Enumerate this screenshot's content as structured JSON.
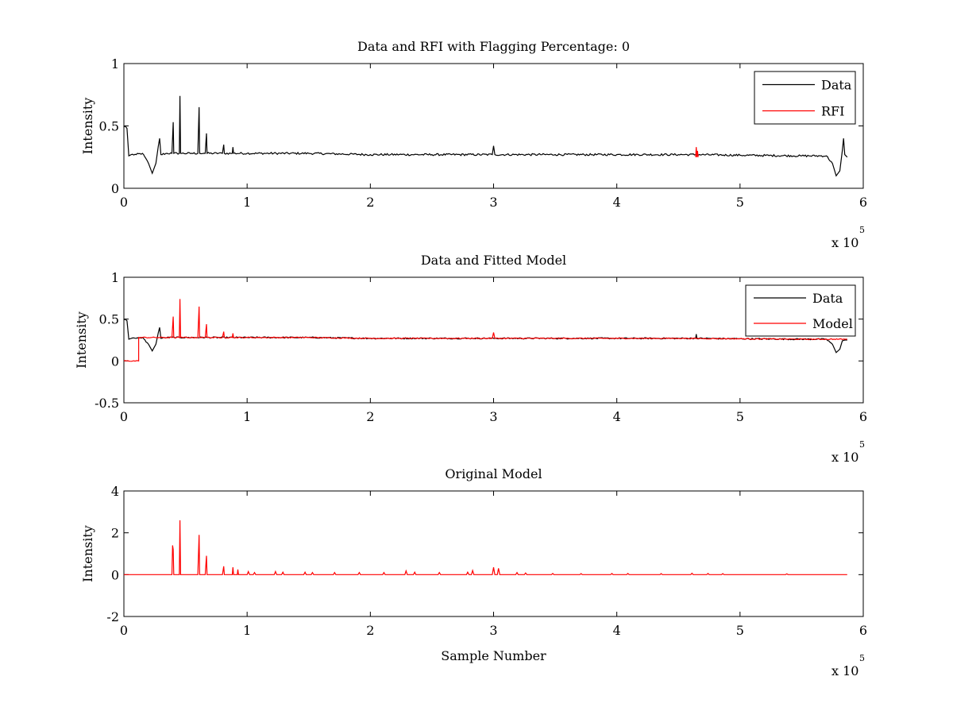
{
  "chart_data": [
    {
      "type": "line",
      "title": "Data and RFI with Flagging Percentage: 0",
      "xlabel": "",
      "ylabel": "Intensity",
      "xlim": [
        0,
        6
      ],
      "ylim": [
        0,
        1
      ],
      "xticks": [
        "0",
        "1",
        "2",
        "3",
        "4",
        "5",
        "6"
      ],
      "yticks": [
        "0",
        "0.5",
        "1"
      ],
      "x_multiplier": "x 10",
      "x_exponent": "5",
      "legend": {
        "position": "top-right",
        "entries": [
          {
            "label": "Data",
            "color": "#000000"
          },
          {
            "label": "RFI",
            "color": "#ff0000"
          }
        ]
      },
      "series": [
        {
          "name": "Data",
          "color": "#000000",
          "points": [
            [
              0.0,
              0.49
            ],
            [
              0.01,
              0.5
            ],
            [
              0.025,
              0.48
            ],
            [
              0.04,
              0.26
            ],
            [
              0.06,
              0.27
            ],
            [
              0.1,
              0.27
            ],
            [
              0.15,
              0.28
            ],
            [
              0.2,
              0.2
            ],
            [
              0.23,
              0.12
            ],
            [
              0.26,
              0.2
            ],
            [
              0.28,
              0.34
            ],
            [
              0.29,
              0.4
            ],
            [
              0.3,
              0.27
            ],
            [
              0.35,
              0.28
            ],
            [
              0.39,
              0.28
            ],
            [
              0.4,
              0.53
            ],
            [
              0.405,
              0.28
            ],
            [
              0.45,
              0.28
            ],
            [
              0.455,
              0.74
            ],
            [
              0.46,
              0.28
            ],
            [
              0.55,
              0.28
            ],
            [
              0.6,
              0.28
            ],
            [
              0.61,
              0.65
            ],
            [
              0.615,
              0.28
            ],
            [
              0.66,
              0.28
            ],
            [
              0.67,
              0.44
            ],
            [
              0.675,
              0.28
            ],
            [
              0.8,
              0.28
            ],
            [
              0.81,
              0.35
            ],
            [
              0.815,
              0.28
            ],
            [
              0.88,
              0.28
            ],
            [
              0.885,
              0.33
            ],
            [
              0.89,
              0.28
            ],
            [
              1.0,
              0.28
            ],
            [
              1.5,
              0.28
            ],
            [
              2.0,
              0.27
            ],
            [
              2.5,
              0.27
            ],
            [
              2.99,
              0.27
            ],
            [
              3.0,
              0.34
            ],
            [
              3.01,
              0.27
            ],
            [
              3.5,
              0.27
            ],
            [
              4.0,
              0.27
            ],
            [
              4.5,
              0.27
            ],
            [
              4.65,
              0.27
            ],
            [
              5.0,
              0.265
            ],
            [
              5.5,
              0.26
            ],
            [
              5.7,
              0.26
            ],
            [
              5.75,
              0.2
            ],
            [
              5.78,
              0.1
            ],
            [
              5.81,
              0.14
            ],
            [
              5.83,
              0.3
            ],
            [
              5.84,
              0.4
            ],
            [
              5.85,
              0.27
            ],
            [
              5.87,
              0.25
            ]
          ],
          "noise": 0.008
        },
        {
          "name": "RFI",
          "color": "#ff0000",
          "points": [
            [
              4.64,
              0.25
            ],
            [
              4.645,
              0.33
            ],
            [
              4.65,
              0.25
            ],
            [
              4.655,
              0.3
            ],
            [
              4.66,
              0.25
            ]
          ],
          "noise": 0
        }
      ]
    },
    {
      "type": "line",
      "title": "Data and Fitted Model",
      "xlabel": "",
      "ylabel": "Intensity",
      "xlim": [
        0,
        6
      ],
      "ylim": [
        -0.5,
        1
      ],
      "xticks": [
        "0",
        "1",
        "2",
        "3",
        "4",
        "5",
        "6"
      ],
      "yticks": [
        "-0.5",
        "0",
        "0.5",
        "1"
      ],
      "x_multiplier": "x 10",
      "x_exponent": "5",
      "legend": {
        "position": "top-right",
        "entries": [
          {
            "label": "Data",
            "color": "#000000"
          },
          {
            "label": "Model",
            "color": "#ff0000"
          }
        ]
      },
      "series": [
        {
          "name": "Data",
          "color": "#000000",
          "points": [
            [
              0.0,
              0.49
            ],
            [
              0.01,
              0.5
            ],
            [
              0.025,
              0.48
            ],
            [
              0.04,
              0.26
            ],
            [
              0.06,
              0.27
            ],
            [
              0.1,
              0.27
            ],
            [
              0.15,
              0.28
            ],
            [
              0.2,
              0.2
            ],
            [
              0.23,
              0.12
            ],
            [
              0.26,
              0.2
            ],
            [
              0.28,
              0.34
            ],
            [
              0.29,
              0.4
            ],
            [
              0.3,
              0.27
            ],
            [
              0.35,
              0.28
            ],
            [
              1.0,
              0.28
            ],
            [
              1.5,
              0.28
            ],
            [
              2.0,
              0.27
            ],
            [
              2.5,
              0.27
            ],
            [
              3.0,
              0.27
            ],
            [
              3.5,
              0.27
            ],
            [
              4.0,
              0.27
            ],
            [
              4.5,
              0.27
            ],
            [
              4.64,
              0.27
            ],
            [
              4.645,
              0.32
            ],
            [
              4.65,
              0.27
            ],
            [
              5.0,
              0.265
            ],
            [
              5.5,
              0.26
            ],
            [
              5.7,
              0.26
            ],
            [
              5.75,
              0.2
            ],
            [
              5.78,
              0.1
            ],
            [
              5.81,
              0.14
            ],
            [
              5.83,
              0.24
            ],
            [
              5.85,
              0.25
            ],
            [
              5.87,
              0.25
            ]
          ],
          "noise": 0.008
        },
        {
          "name": "Model",
          "color": "#ff0000",
          "points": [
            [
              0.0,
              0.0
            ],
            [
              0.12,
              0.0
            ],
            [
              0.12,
              0.28
            ],
            [
              0.39,
              0.28
            ],
            [
              0.4,
              0.53
            ],
            [
              0.405,
              0.28
            ],
            [
              0.45,
              0.28
            ],
            [
              0.455,
              0.74
            ],
            [
              0.46,
              0.28
            ],
            [
              0.6,
              0.28
            ],
            [
              0.61,
              0.65
            ],
            [
              0.615,
              0.28
            ],
            [
              0.66,
              0.28
            ],
            [
              0.67,
              0.44
            ],
            [
              0.675,
              0.28
            ],
            [
              0.8,
              0.28
            ],
            [
              0.81,
              0.35
            ],
            [
              0.815,
              0.28
            ],
            [
              0.88,
              0.28
            ],
            [
              0.885,
              0.33
            ],
            [
              0.89,
              0.28
            ],
            [
              1.0,
              0.28
            ],
            [
              1.5,
              0.28
            ],
            [
              2.0,
              0.27
            ],
            [
              2.5,
              0.27
            ],
            [
              2.99,
              0.27
            ],
            [
              3.0,
              0.34
            ],
            [
              3.01,
              0.27
            ],
            [
              3.5,
              0.27
            ],
            [
              4.0,
              0.27
            ],
            [
              4.5,
              0.27
            ],
            [
              5.0,
              0.265
            ],
            [
              5.5,
              0.26
            ],
            [
              5.87,
              0.26
            ]
          ],
          "noise": 0.006
        }
      ]
    },
    {
      "type": "line",
      "title": "Original Model",
      "xlabel": "Sample Number",
      "ylabel": "Intensity",
      "xlim": [
        0,
        6
      ],
      "ylim": [
        -2,
        4
      ],
      "xticks": [
        "0",
        "1",
        "2",
        "3",
        "4",
        "5",
        "6"
      ],
      "yticks": [
        "-2",
        "0",
        "2",
        "4"
      ],
      "x_multiplier": "x 10",
      "x_exponent": "5",
      "series": [
        {
          "name": "",
          "color": "#ff0000",
          "points": [
            [
              0.0,
              0.0
            ],
            [
              0.39,
              0.0
            ],
            [
              0.395,
              1.4
            ],
            [
              0.4,
              1.2
            ],
            [
              0.405,
              0.0
            ],
            [
              0.45,
              0.0
            ],
            [
              0.455,
              2.6
            ],
            [
              0.46,
              0.0
            ],
            [
              0.6,
              0.0
            ],
            [
              0.61,
              1.9
            ],
            [
              0.615,
              0.0
            ],
            [
              0.66,
              0.0
            ],
            [
              0.67,
              0.9
            ],
            [
              0.675,
              0.0
            ],
            [
              0.8,
              0.0
            ],
            [
              0.81,
              0.4
            ],
            [
              0.815,
              0.0
            ],
            [
              0.88,
              0.0
            ],
            [
              0.885,
              0.35
            ],
            [
              0.89,
              0.0
            ],
            [
              0.92,
              0.0
            ],
            [
              0.925,
              0.25
            ],
            [
              0.93,
              0.0
            ],
            [
              1.0,
              0.0
            ],
            [
              1.01,
              0.15
            ],
            [
              1.02,
              0.0
            ],
            [
              1.05,
              0.0
            ],
            [
              1.06,
              0.1
            ],
            [
              1.07,
              0.0
            ],
            [
              1.22,
              0.0
            ],
            [
              1.23,
              0.15
            ],
            [
              1.24,
              0.0
            ],
            [
              1.28,
              0.0
            ],
            [
              1.29,
              0.12
            ],
            [
              1.3,
              0.0
            ],
            [
              1.46,
              0.0
            ],
            [
              1.47,
              0.12
            ],
            [
              1.48,
              0.0
            ],
            [
              1.52,
              0.0
            ],
            [
              1.53,
              0.1
            ],
            [
              1.54,
              0.0
            ],
            [
              1.7,
              0.0
            ],
            [
              1.71,
              0.1
            ],
            [
              1.72,
              0.0
            ],
            [
              1.9,
              0.0
            ],
            [
              1.91,
              0.1
            ],
            [
              1.92,
              0.0
            ],
            [
              2.1,
              0.0
            ],
            [
              2.11,
              0.1
            ],
            [
              2.12,
              0.0
            ],
            [
              2.28,
              0.0
            ],
            [
              2.29,
              0.18
            ],
            [
              2.3,
              0.0
            ],
            [
              2.35,
              0.0
            ],
            [
              2.36,
              0.12
            ],
            [
              2.37,
              0.0
            ],
            [
              2.55,
              0.0
            ],
            [
              2.56,
              0.1
            ],
            [
              2.57,
              0.0
            ],
            [
              2.78,
              0.0
            ],
            [
              2.79,
              0.12
            ],
            [
              2.8,
              0.0
            ],
            [
              2.82,
              0.0
            ],
            [
              2.83,
              0.2
            ],
            [
              2.84,
              0.0
            ],
            [
              2.99,
              0.0
            ],
            [
              3.0,
              0.35
            ],
            [
              3.01,
              0.0
            ],
            [
              3.03,
              0.0
            ],
            [
              3.04,
              0.3
            ],
            [
              3.05,
              0.0
            ],
            [
              3.18,
              0.0
            ],
            [
              3.19,
              0.1
            ],
            [
              3.2,
              0.0
            ],
            [
              3.25,
              0.0
            ],
            [
              3.26,
              0.08
            ],
            [
              3.27,
              0.0
            ],
            [
              3.47,
              0.0
            ],
            [
              3.48,
              0.06
            ],
            [
              3.49,
              0.0
            ],
            [
              3.7,
              0.0
            ],
            [
              3.71,
              0.05
            ],
            [
              3.72,
              0.0
            ],
            [
              3.95,
              0.0
            ],
            [
              3.96,
              0.06
            ],
            [
              3.97,
              0.0
            ],
            [
              4.08,
              0.0
            ],
            [
              4.09,
              0.06
            ],
            [
              4.1,
              0.0
            ],
            [
              4.35,
              0.0
            ],
            [
              4.36,
              0.05
            ],
            [
              4.37,
              0.0
            ],
            [
              4.6,
              0.0
            ],
            [
              4.61,
              0.07
            ],
            [
              4.62,
              0.0
            ],
            [
              4.73,
              0.0
            ],
            [
              4.74,
              0.06
            ],
            [
              4.75,
              0.0
            ],
            [
              4.85,
              0.0
            ],
            [
              4.86,
              0.05
            ],
            [
              4.87,
              0.0
            ],
            [
              5.37,
              0.0
            ],
            [
              5.38,
              0.04
            ],
            [
              5.39,
              0.0
            ],
            [
              5.87,
              0.0
            ]
          ],
          "noise": 0
        }
      ]
    }
  ]
}
